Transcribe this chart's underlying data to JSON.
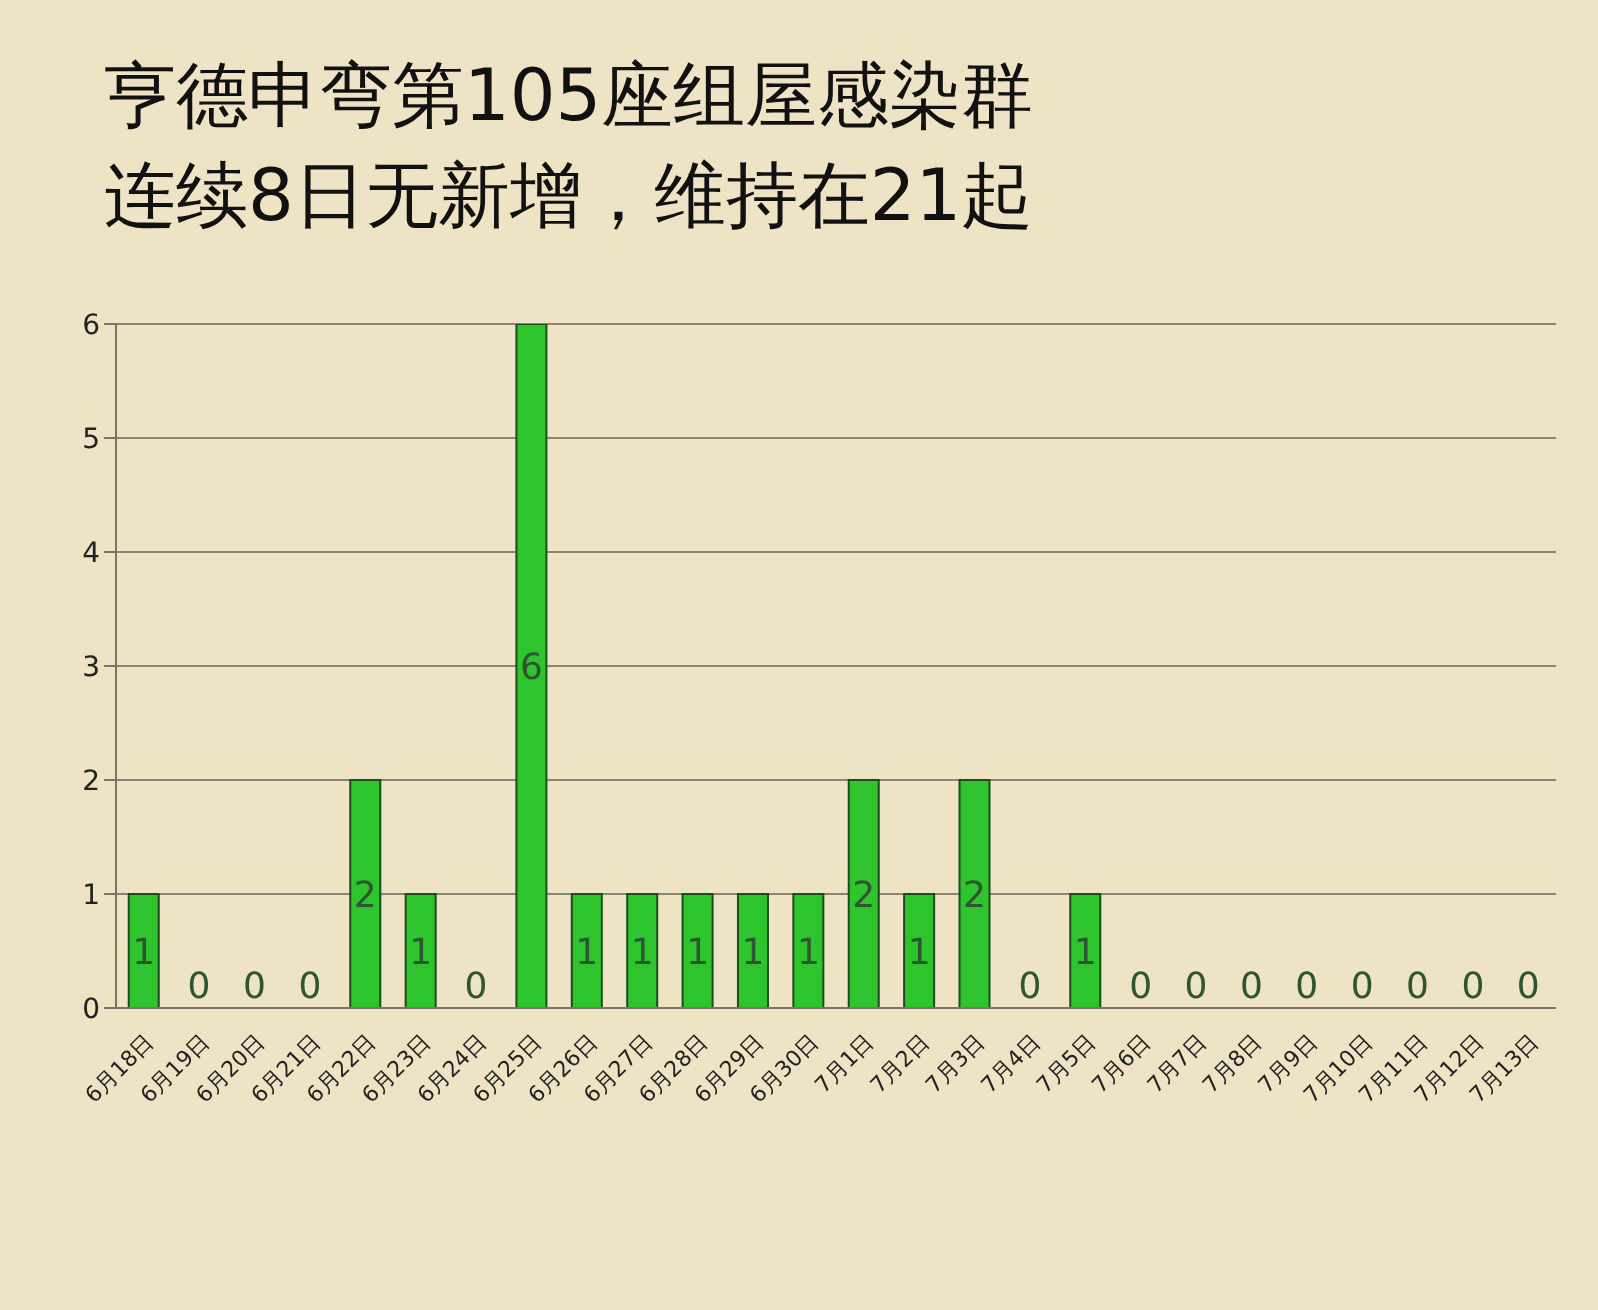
{
  "chart_data": {
    "type": "bar",
    "title": "亨德申弯第105座组屋感染群连续8日无新增，维持在21起",
    "categories": [
      "6月18日",
      "6月19日",
      "6月20日",
      "6月21日",
      "6月22日",
      "6月23日",
      "6月24日",
      "6月25日",
      "6月26日",
      "6月27日",
      "6月28日",
      "6月29日",
      "6月30日",
      "7月1日",
      "7月2日",
      "7月3日",
      "7月4日",
      "7月5日",
      "7月6日",
      "7月7日",
      "7月8日",
      "7月9日",
      "7月10日",
      "7月11日",
      "7月12日",
      "7月13日"
    ],
    "values": [
      1,
      0,
      0,
      0,
      2,
      1,
      0,
      6,
      1,
      1,
      1,
      1,
      1,
      2,
      1,
      2,
      0,
      1,
      0,
      0,
      0,
      0,
      0,
      0,
      0,
      0
    ],
    "color": "#2ec42e",
    "ylim": [
      0,
      6
    ],
    "yticks": [
      0,
      1,
      2,
      3,
      4,
      5,
      6
    ],
    "grid": "y",
    "data_labels": true,
    "legend": false
  }
}
